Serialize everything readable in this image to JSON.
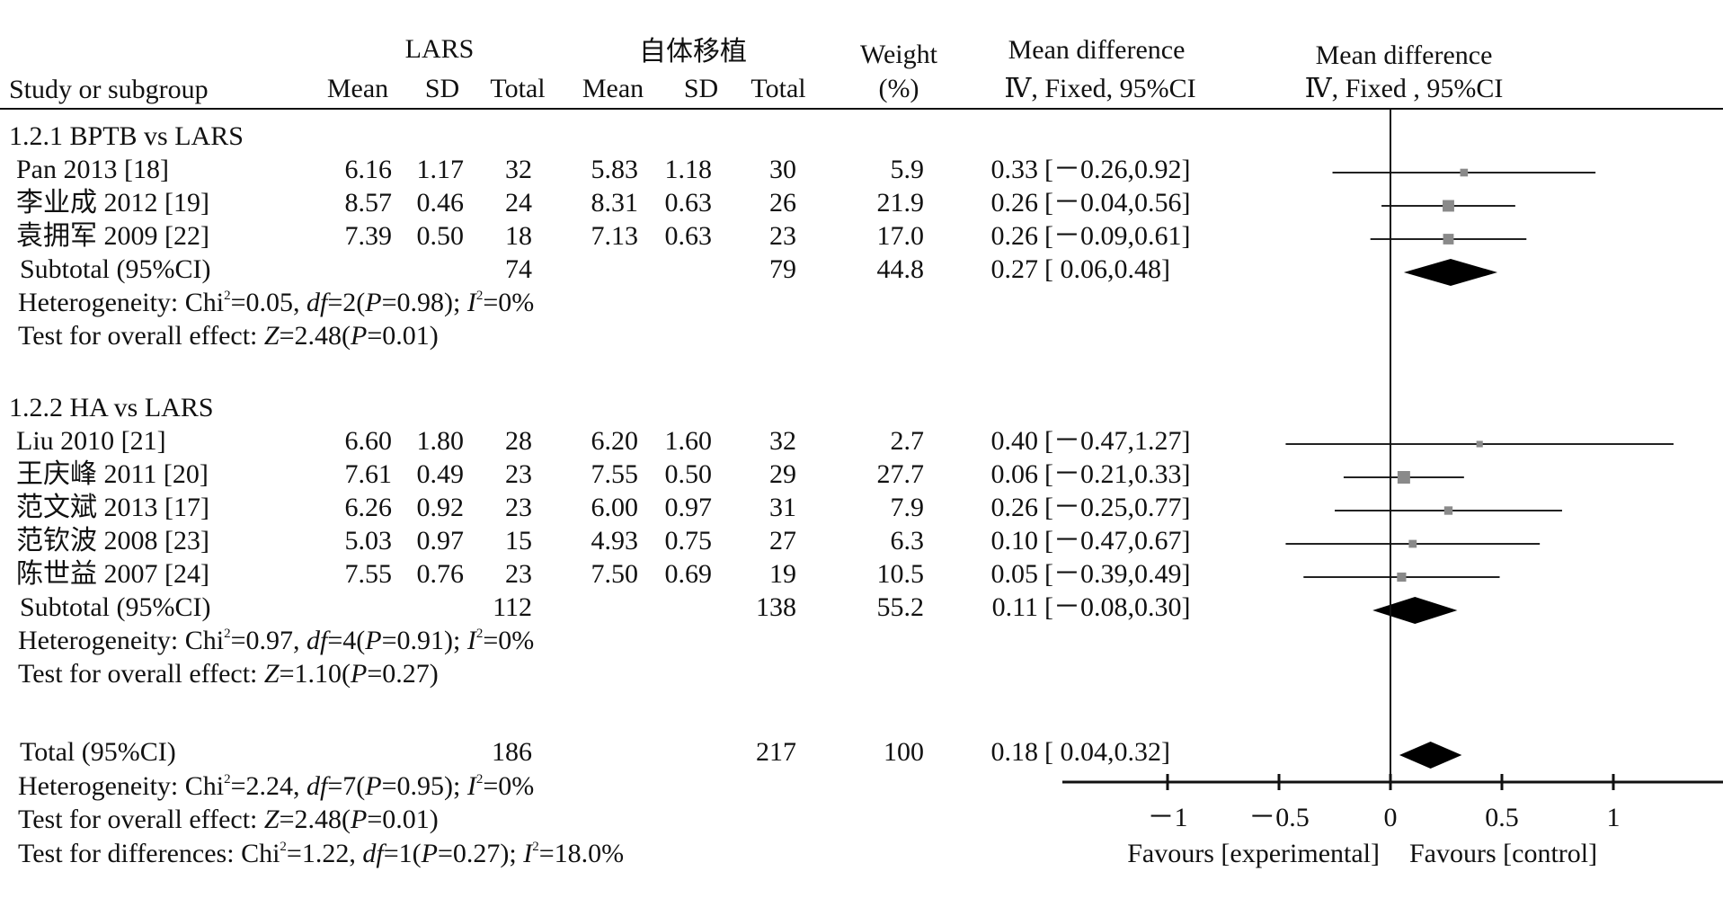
{
  "chart_data": {
    "type": "forest",
    "headers": {
      "study": "Study or subgroup",
      "group_a": "LARS",
      "group_b": "自体移植",
      "mean": "Mean",
      "sd": "SD",
      "total": "Total",
      "weight_1": "Weight",
      "weight_2": "(%)",
      "md_text_1": "Mean difference",
      "md_text_2": "Ⅳ, Fixed, 95%CI",
      "md_plot_1": "Mean difference",
      "md_plot_2": "Ⅳ, Fixed , 95%CI"
    },
    "groups": [
      {
        "title": "1.2.1 BPTB vs LARS",
        "rows": [
          {
            "study": "Pan 2013 [18]",
            "m1": "6.16",
            "sd1": "1.17",
            "n1": "32",
            "m2": "5.83",
            "sd2": "1.18",
            "n2": "30",
            "weight": "5.9",
            "md": "0.33",
            "ci": "[－0.26,0.92]",
            "est": 0.33,
            "lo": -0.26,
            "hi": 0.92
          },
          {
            "study": "李业成 2012 [19]",
            "m1": "8.57",
            "sd1": "0.46",
            "n1": "24",
            "m2": "8.31",
            "sd2": "0.63",
            "n2": "26",
            "weight": "21.9",
            "md": "0.26",
            "ci": "[－0.04,0.56]",
            "est": 0.26,
            "lo": -0.04,
            "hi": 0.56
          },
          {
            "study": "袁拥军 2009 [22]",
            "m1": "7.39",
            "sd1": "0.50",
            "n1": "18",
            "m2": "7.13",
            "sd2": "0.63",
            "n2": "23",
            "weight": "17.0",
            "md": "0.26",
            "ci": "[－0.09,0.61]",
            "est": 0.26,
            "lo": -0.09,
            "hi": 0.61
          }
        ],
        "subtotal": {
          "label": "Subtotal (95%CI)",
          "n1": "74",
          "n2": "79",
          "weight": "44.8",
          "md": "0.27",
          "ci": "[   0.06,0.48]",
          "est": 0.27,
          "lo": 0.06,
          "hi": 0.48
        },
        "heterogeneity": {
          "chi": "0.05",
          "df": "2",
          "p": "0.98",
          "i2": "0%"
        },
        "overall": {
          "z": "2.48",
          "p": "0.01"
        }
      },
      {
        "title": "1.2.2 HA vs LARS",
        "rows": [
          {
            "study": "Liu 2010 [21]",
            "m1": "6.60",
            "sd1": "1.80",
            "n1": "28",
            "m2": "6.20",
            "sd2": "1.60",
            "n2": "32",
            "weight": "2.7",
            "md": "0.40",
            "ci": "[－0.47,1.27]",
            "est": 0.4,
            "lo": -0.47,
            "hi": 1.27
          },
          {
            "study": "王庆峰 2011 [20]",
            "m1": "7.61",
            "sd1": "0.49",
            "n1": "23",
            "m2": "7.55",
            "sd2": "0.50",
            "n2": "29",
            "weight": "27.7",
            "md": "0.06",
            "ci": "[－0.21,0.33]",
            "est": 0.06,
            "lo": -0.21,
            "hi": 0.33
          },
          {
            "study": "范文斌 2013 [17]",
            "m1": "6.26",
            "sd1": "0.92",
            "n1": "23",
            "m2": "6.00",
            "sd2": "0.97",
            "n2": "31",
            "weight": "7.9",
            "md": "0.26",
            "ci": "[－0.25,0.77]",
            "est": 0.26,
            "lo": -0.25,
            "hi": 0.77
          },
          {
            "study": "范钦波 2008 [23]",
            "m1": "5.03",
            "sd1": "0.97",
            "n1": "15",
            "m2": "4.93",
            "sd2": "0.75",
            "n2": "27",
            "weight": "6.3",
            "md": "0.10",
            "ci": "[－0.47,0.67]",
            "est": 0.1,
            "lo": -0.47,
            "hi": 0.67
          },
          {
            "study": "陈世益 2007 [24]",
            "m1": "7.55",
            "sd1": "0.76",
            "n1": "23",
            "m2": "7.50",
            "sd2": "0.69",
            "n2": "19",
            "weight": "10.5",
            "md": "0.05",
            "ci": "[－0.39,0.49]",
            "est": 0.05,
            "lo": -0.39,
            "hi": 0.49
          }
        ],
        "subtotal": {
          "label": "Subtotal (95%CI)",
          "n1": "112",
          "n2": "138",
          "weight": "55.2",
          "md": "0.11",
          "ci": "[－0.08,0.30]",
          "est": 0.11,
          "lo": -0.08,
          "hi": 0.3
        },
        "heterogeneity": {
          "chi": "0.97",
          "df": "4",
          "p": "0.91",
          "i2": "0%"
        },
        "overall": {
          "z": "1.10",
          "p": "0.27"
        }
      }
    ],
    "total": {
      "label": "Total (95%CI)",
      "n1": "186",
      "n2": "217",
      "weight": "100",
      "md": "0.18",
      "ci": "[    0.04,0.32]",
      "est": 0.18,
      "lo": 0.04,
      "hi": 0.32
    },
    "total_heterogeneity": {
      "chi": "2.24",
      "df": "7",
      "p": "0.95",
      "i2": "0%"
    },
    "total_overall": {
      "z": "2.48",
      "p": "0.01"
    },
    "subgroup_differences": {
      "chi": "1.22",
      "df": "1",
      "p": "0.27",
      "i2": "18.0%"
    },
    "x_axis": {
      "ticks": [
        -1,
        -0.5,
        0,
        0.5,
        1
      ],
      "tick_labels": [
        "－1",
        "－0.5",
        "0",
        "0.5",
        "1"
      ],
      "xlim": [
        -1.5,
        1.5
      ]
    },
    "favours_left": "Favours [experimental]",
    "favours_right": "Favours [control]",
    "labels": {
      "heterogeneity_prefix": "Heterogeneity: Chi",
      "overall_prefix": "Test for overall effect: ",
      "differences_prefix": "Test for differences: Chi"
    }
  }
}
